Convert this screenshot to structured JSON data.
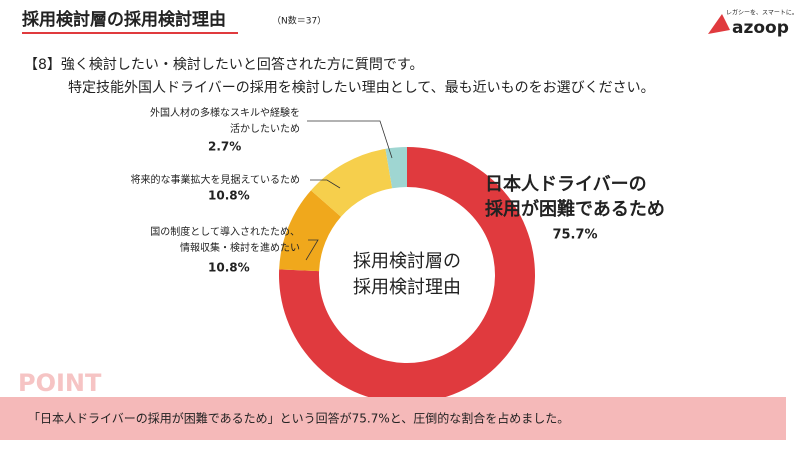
{
  "header": {
    "title": "採用検討層の採用検討理由",
    "note": "（N数＝37）",
    "logo": "azoop",
    "tagline": "レガシーを、スマートに。"
  },
  "question": [
    "【8】強く検討したい・検討したいと回答された方に質問です。",
    "特定技能外国人ドライバーの採用を検討したい理由として、最も近いものをお選びください。"
  ],
  "chart_data": {
    "type": "donut",
    "center_label": [
      "採用検討層の",
      "採用検討理由"
    ],
    "categories": [
      [
        "日本人ドライバーの",
        "採用が困難であるため"
      ],
      [
        "国の制度として導入されたため、",
        "情報収集・検討を進めたい"
      ],
      [
        "将来的な事業拡大を見据えているため"
      ],
      [
        "外国人材の多様なスキルや経験を",
        "活かしたいため"
      ]
    ],
    "values": [
      75.7,
      10.8,
      10.8,
      2.7
    ],
    "value_labels": [
      "75.7%",
      "10.8%",
      "10.8%",
      "2.7%"
    ],
    "colors": [
      "#e03a3e",
      "#f0a81c",
      "#f6cf4c",
      "#9fd6d2"
    ]
  },
  "point": {
    "label": "POINT",
    "text": "「日本人ドライバーの採用が困難であるため」という回答が75.7%と、圧倒的な割合を占めました。"
  }
}
